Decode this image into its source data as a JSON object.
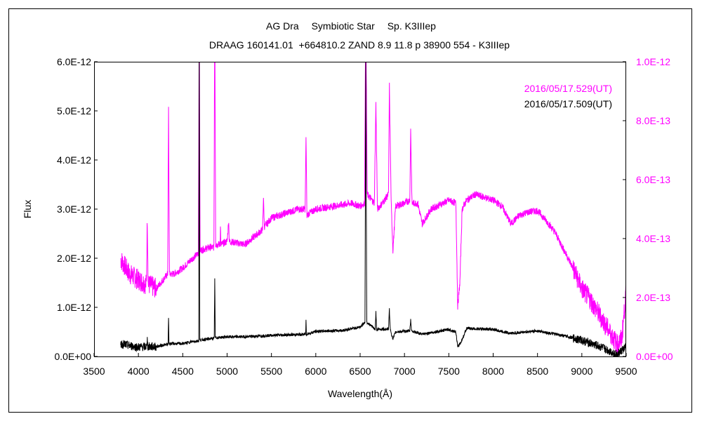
{
  "chart_data": {
    "type": "line",
    "title": "AG Dra　 Symbiotic Star　 Sp. K3IIIep",
    "subtitle": "DRAAG 160141.01  +664810.2 ZAND 8.9 11.8 p 38900 554 - K3IIIep",
    "xlabel": "Wavelength(Å)",
    "ylabel": "Flux",
    "xlim": [
      3500,
      9500
    ],
    "ylim_left": [
      0,
      6e-12
    ],
    "ylim_right": [
      0,
      1e-12
    ],
    "x_ticks": [
      "3500",
      "4000",
      "4500",
      "5000",
      "5500",
      "6000",
      "6500",
      "7000",
      "7500",
      "8000",
      "8500",
      "9000",
      "9500"
    ],
    "y_ticks_left": [
      "0.0E+00",
      "1.0E-12",
      "2.0E-12",
      "3.0E-12",
      "4.0E-12",
      "5.0E-12",
      "6.0E-12"
    ],
    "y_ticks_right": [
      "0.0E+00",
      "2.0E-13",
      "4.0E-13",
      "6.0E-13",
      "8.0E-13",
      "1.0E-12"
    ],
    "legend_position": "top-right",
    "colors": {
      "magenta": "#ff00ff",
      "black": "#000000"
    },
    "series": [
      {
        "name": "2016/05/17.529(UT)",
        "axis": "right",
        "unit": "1e-13",
        "color": "#ff00ff",
        "points": [
          [
            3800,
            3.3
          ],
          [
            3900,
            2.8
          ],
          [
            4000,
            2.6
          ],
          [
            4090,
            2.45
          ],
          [
            4100,
            4.7
          ],
          [
            4110,
            2.45
          ],
          [
            4200,
            2.3
          ],
          [
            4330,
            2.8
          ],
          [
            4340,
            8.4
          ],
          [
            4350,
            2.8
          ],
          [
            4400,
            2.8
          ],
          [
            4500,
            3.0
          ],
          [
            4600,
            3.3
          ],
          [
            4676,
            3.5
          ],
          [
            4686,
            12
          ],
          [
            4696,
            3.6
          ],
          [
            4800,
            3.7
          ],
          [
            4851,
            3.7
          ],
          [
            4861,
            12
          ],
          [
            4871,
            3.8
          ],
          [
            4921,
            3.8
          ],
          [
            4925,
            4.5
          ],
          [
            4930,
            3.8
          ],
          [
            5000,
            3.9
          ],
          [
            5018,
            4.6
          ],
          [
            5025,
            3.9
          ],
          [
            5200,
            3.8
          ],
          [
            5400,
            4.3
          ],
          [
            5410,
            5.4
          ],
          [
            5420,
            4.4
          ],
          [
            5500,
            4.7
          ],
          [
            5800,
            5.0
          ],
          [
            5880,
            5.0
          ],
          [
            5890,
            7.5
          ],
          [
            5900,
            4.8
          ],
          [
            6000,
            5.0
          ],
          [
            6200,
            5.1
          ],
          [
            6400,
            5.2
          ],
          [
            6500,
            5.1
          ],
          [
            6550,
            5.2
          ],
          [
            6563,
            12
          ],
          [
            6580,
            5.5
          ],
          [
            6660,
            5.2
          ],
          [
            6678,
            8.6
          ],
          [
            6695,
            5.0
          ],
          [
            6750,
            5.2
          ],
          [
            6820,
            5.5
          ],
          [
            6830,
            9.2
          ],
          [
            6850,
            5.2
          ],
          [
            6870,
            3.6
          ],
          [
            6900,
            5.1
          ],
          [
            7000,
            5.2
          ],
          [
            7060,
            5.3
          ],
          [
            7070,
            7.7
          ],
          [
            7085,
            5.2
          ],
          [
            7150,
            5.2
          ],
          [
            7200,
            4.5
          ],
          [
            7300,
            5.0
          ],
          [
            7500,
            5.3
          ],
          [
            7580,
            5.2
          ],
          [
            7600,
            1.7
          ],
          [
            7625,
            2.5
          ],
          [
            7650,
            5.0
          ],
          [
            7700,
            5.3
          ],
          [
            7800,
            5.5
          ],
          [
            8000,
            5.3
          ],
          [
            8100,
            5.1
          ],
          [
            8200,
            4.5
          ],
          [
            8300,
            4.8
          ],
          [
            8400,
            4.9
          ],
          [
            8500,
            4.95
          ],
          [
            8600,
            4.6
          ],
          [
            8700,
            4.2
          ],
          [
            8800,
            3.6
          ],
          [
            8900,
            3.0
          ],
          [
            9000,
            2.3
          ],
          [
            9100,
            1.9
          ],
          [
            9200,
            1.4
          ],
          [
            9300,
            0.9
          ],
          [
            9400,
            0.4
          ],
          [
            9450,
            0.6
          ],
          [
            9500,
            2.2
          ]
        ]
      },
      {
        "name": "2016/05/17.509(UT)",
        "axis": "left",
        "unit": "1e-12",
        "color": "#000000",
        "points": [
          [
            3800,
            0.26
          ],
          [
            3900,
            0.22
          ],
          [
            4000,
            0.19
          ],
          [
            4095,
            0.2
          ],
          [
            4100,
            0.45
          ],
          [
            4105,
            0.2
          ],
          [
            4200,
            0.2
          ],
          [
            4335,
            0.25
          ],
          [
            4340,
            0.8
          ],
          [
            4345,
            0.26
          ],
          [
            4500,
            0.26
          ],
          [
            4600,
            0.3
          ],
          [
            4680,
            0.32
          ],
          [
            4686,
            6.5
          ],
          [
            4692,
            0.33
          ],
          [
            4800,
            0.36
          ],
          [
            4855,
            0.37
          ],
          [
            4861,
            1.6
          ],
          [
            4867,
            0.38
          ],
          [
            5000,
            0.4
          ],
          [
            5200,
            0.4
          ],
          [
            5500,
            0.43
          ],
          [
            5885,
            0.45
          ],
          [
            5890,
            0.74
          ],
          [
            5895,
            0.45
          ],
          [
            6000,
            0.51
          ],
          [
            6300,
            0.53
          ],
          [
            6500,
            0.6
          ],
          [
            6555,
            0.7
          ],
          [
            6563,
            6.0
          ],
          [
            6575,
            0.7
          ],
          [
            6670,
            0.55
          ],
          [
            6678,
            0.9
          ],
          [
            6686,
            0.55
          ],
          [
            6820,
            0.56
          ],
          [
            6830,
            0.96
          ],
          [
            6840,
            0.55
          ],
          [
            6870,
            0.35
          ],
          [
            6900,
            0.5
          ],
          [
            7060,
            0.52
          ],
          [
            7070,
            0.75
          ],
          [
            7080,
            0.52
          ],
          [
            7200,
            0.45
          ],
          [
            7500,
            0.55
          ],
          [
            7580,
            0.5
          ],
          [
            7600,
            0.19
          ],
          [
            7640,
            0.3
          ],
          [
            7700,
            0.57
          ],
          [
            8000,
            0.55
          ],
          [
            8200,
            0.47
          ],
          [
            8500,
            0.52
          ],
          [
            8800,
            0.42
          ],
          [
            9000,
            0.33
          ],
          [
            9200,
            0.2
          ],
          [
            9400,
            0.04
          ],
          [
            9500,
            0.2
          ]
        ]
      }
    ]
  }
}
